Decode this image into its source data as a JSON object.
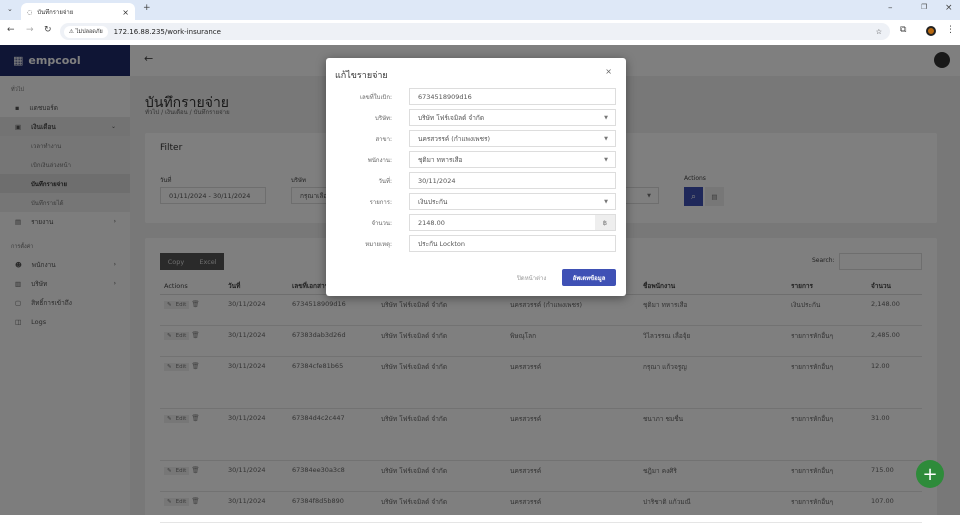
{
  "browser": {
    "tab_title": "บันทึกรายจ่าย",
    "security_label": "ไม่ปลอดภัย",
    "url": "172.16.88.235/work-insurance"
  },
  "sidebar": {
    "brand": "empcool",
    "section_general": "ทั่วไป",
    "section_settings": "การตั้งค่า",
    "items": [
      {
        "label": "แดชบอร์ด"
      },
      {
        "label": "เงินเดือน"
      },
      {
        "label": "รายงาน"
      },
      {
        "label": "พนักงาน"
      },
      {
        "label": "บริษัท"
      },
      {
        "label": "สิทธิ์การเข้าถึง"
      },
      {
        "label": "Logs"
      }
    ],
    "sub_items": [
      {
        "label": "เวลาทำงาน"
      },
      {
        "label": "เบิกเงินล่วงหน้า"
      },
      {
        "label": "บันทึกรายจ่าย"
      },
      {
        "label": "บันทึกรายได้"
      }
    ]
  },
  "page": {
    "title": "บันทึกรายจ่าย",
    "breadcrumb": [
      "ทั่วไป",
      "เงินเดือน",
      "บันทึกรายจ่าย"
    ]
  },
  "filter": {
    "title": "Filter",
    "date_label": "วันที่",
    "date_value": "01/11/2024 - 30/11/2024",
    "company_label": "บริษัท",
    "company_value": "กรุณาเลือ",
    "actions_label": "Actions"
  },
  "table": {
    "copy": "Copy",
    "excel": "Excel",
    "search_label": "Search:",
    "edit_label": "Edit",
    "columns": [
      "Actions",
      "วันที่",
      "เลขที่เอกสาร",
      "บริษัท",
      "สาขา",
      "ชื่อพนักงาน",
      "รายการ",
      "จำนวน"
    ],
    "rows": [
      {
        "date": "30/11/2024",
        "doc": "6734518909d16",
        "company": "บริษัท โฟร์เจมิลด์ จำกัด",
        "branch": "นครสวรรค์ (กำแพงเพชร)",
        "employee": "ชุติมา ทหารเสือ",
        "item": "เงินประกัน",
        "amount": "2,148.00"
      },
      {
        "date": "30/11/2024",
        "doc": "67383dab3d26d",
        "company": "บริษัท โฟร์เจมิลด์ จำกัด",
        "branch": "พิษณุโลก",
        "employee": "วิไลวรรณ เลื่อจุ้ย",
        "item": "รายการหักอื่นๆ",
        "amount": "2,485.00"
      },
      {
        "date": "30/11/2024",
        "doc": "67384cfe81b65",
        "company": "บริษัท โฟร์เจมิลด์ จำกัด",
        "branch": "นครสวรรค์",
        "employee": "กรุณา แก้วจรูญ",
        "item": "รายการหักอื่นๆ",
        "amount": "12.00"
      },
      {
        "date": "30/11/2024",
        "doc": "67384d4c2c447",
        "company": "บริษัท โฟร์เจมิลด์ จำกัด",
        "branch": "นครสวรรค์",
        "employee": "ชนาภา ชมชื่น",
        "item": "รายการหักอื่นๆ",
        "amount": "31.00"
      },
      {
        "date": "30/11/2024",
        "doc": "67384ee30a3c8",
        "company": "บริษัท โฟร์เจมิลด์ จำกัด",
        "branch": "นครสวรรค์",
        "employee": "ชฎิมา คงศิริ",
        "item": "รายการหักอื่นๆ",
        "amount": "715.00"
      },
      {
        "date": "30/11/2024",
        "doc": "67384f8d5b890",
        "company": "บริษัท โฟร์เจมิลด์ จำกัด",
        "branch": "นครสวรรค์",
        "employee": "ปาริชาติ แก้วมณี",
        "item": "รายการหักอื่นๆ",
        "amount": "107.00"
      }
    ]
  },
  "modal": {
    "title": "แก้ไขรายจ่าย",
    "fields": [
      {
        "label": "เลขที่ใบเบิก:",
        "value": "6734518909d16"
      },
      {
        "label": "บริษัท:",
        "value": "บริษัท โฟร์เจมิลด์ จำกัด"
      },
      {
        "label": "สาขา:",
        "value": "นครสวรรค์ (กำแพงเพชร)"
      },
      {
        "label": "พนักงาน:",
        "value": "ชุติมา ทหารเสือ"
      },
      {
        "label": "วันที่:",
        "value": "30/11/2024"
      },
      {
        "label": "รายการ:",
        "value": "เงินประกัน"
      },
      {
        "label": "จำนวน:",
        "value": "2148.00"
      },
      {
        "label": "หมายเหตุ:",
        "value": "ประกัน Lockton"
      }
    ],
    "currency": "฿",
    "close_label": "ปิดหน้าต่าง",
    "submit_label": "อัพเดทข้อมูล"
  },
  "colors": {
    "brand": "#1f2a6b",
    "primary": "#3f51b5",
    "fab": "#2e8b3a"
  }
}
